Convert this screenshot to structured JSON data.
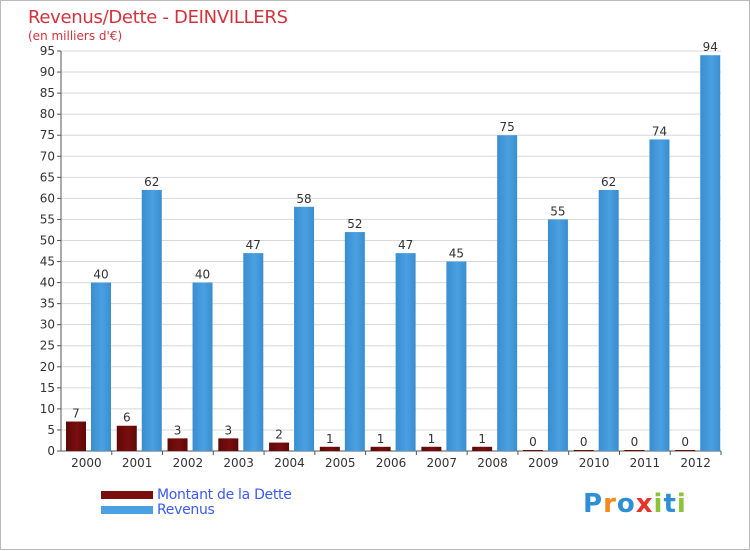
{
  "title": "Revenus/Dette - DEINVILLERS",
  "subtitle": "(en milliers d'€)",
  "logo": {
    "letters": [
      "P",
      "r",
      "o",
      "x",
      "i",
      "t",
      "i"
    ],
    "colors": [
      "#2e8fd6",
      "#f08a1c",
      "#2e8fd6",
      "#e8332a",
      "#8bc33a",
      "#2e8fd6",
      "#8bc33a"
    ]
  },
  "colors": {
    "dette": "#7a0e0e",
    "revenus": "#4aa0e0",
    "axis": "#555555",
    "grid": "#d8d8d8",
    "value_label": "#333333"
  },
  "chart_data": {
    "type": "bar",
    "categories": [
      "2000",
      "2001",
      "2002",
      "2003",
      "2004",
      "2005",
      "2006",
      "2007",
      "2008",
      "2009",
      "2010",
      "2011",
      "2012"
    ],
    "series": [
      {
        "name": "Montant de la Dette",
        "values": [
          7,
          6,
          3,
          3,
          2,
          1,
          1,
          1,
          1,
          0,
          0,
          0,
          0
        ]
      },
      {
        "name": "Revenus",
        "values": [
          40,
          62,
          40,
          47,
          58,
          52,
          47,
          45,
          75,
          55,
          62,
          74,
          94
        ]
      }
    ],
    "ylim": [
      0,
      95
    ],
    "yticks": [
      0,
      5,
      10,
      15,
      20,
      25,
      30,
      35,
      40,
      45,
      50,
      55,
      60,
      65,
      70,
      75,
      80,
      85,
      90,
      95
    ],
    "grid": true,
    "legend": "bottom-left"
  }
}
